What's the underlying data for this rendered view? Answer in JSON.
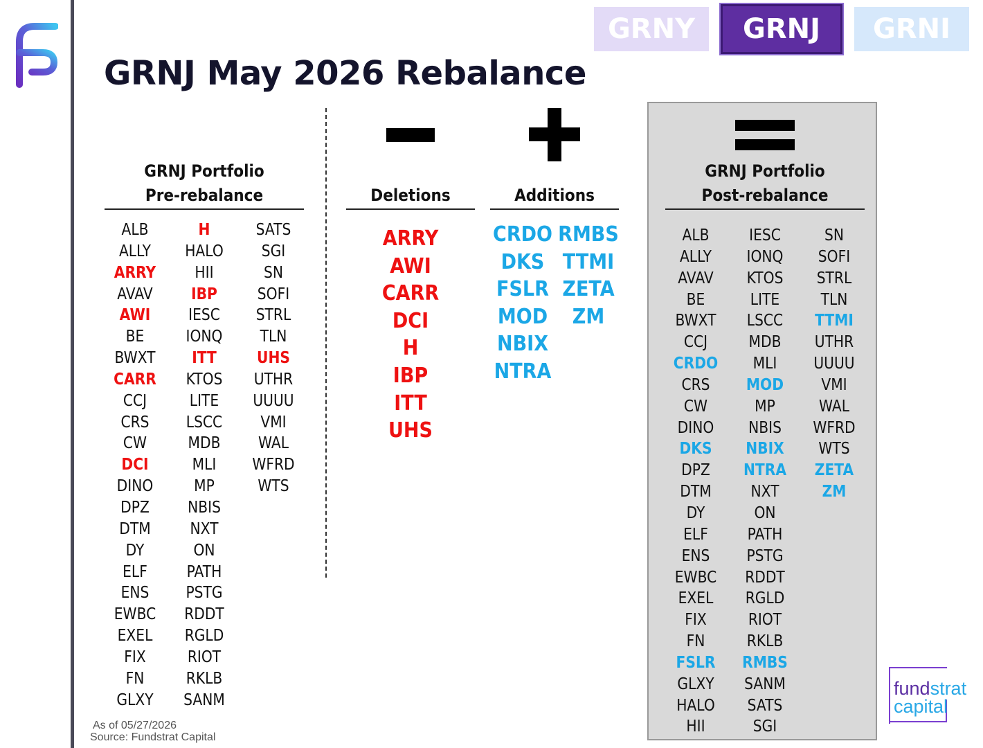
{
  "tabs": [
    {
      "label": "GRNY",
      "color": "#e3dbf7",
      "active": false
    },
    {
      "label": "GRNJ",
      "color": "#5e2ea1",
      "active": true
    },
    {
      "label": "GRNI",
      "color": "#d6e8fb",
      "active": false
    }
  ],
  "title": "GRNJ May 2026 Rebalance",
  "pre": {
    "heading_line1": "GRNJ Portfolio",
    "heading_line2": "Pre-rebalance",
    "col1": [
      "ALB",
      "ALLY",
      "ARRY",
      "AVAV",
      "AWI",
      "BE",
      "BWXT",
      "CARR",
      "CCJ",
      "CRS",
      "CW",
      "DCI",
      "DINO",
      "DPZ",
      "DTM",
      "DY",
      "ELF",
      "ENS",
      "EWBC",
      "EXEL",
      "FIX",
      "FN",
      "GLXY"
    ],
    "col2": [
      "H",
      "HALO",
      "HII",
      "IBP",
      "IESC",
      "IONQ",
      "ITT",
      "KTOS",
      "LITE",
      "LSCC",
      "MDB",
      "MLI",
      "MP",
      "NBIS",
      "NXT",
      "ON",
      "PATH",
      "PSTG",
      "RDDT",
      "RGLD",
      "RIOT",
      "RKLB",
      "SANM"
    ],
    "col3": [
      "SATS",
      "SGI",
      "SN",
      "SOFI",
      "STRL",
      "TLN",
      "UHS",
      "UTHR",
      "UUUU",
      "VMI",
      "WAL",
      "WFRD",
      "WTS"
    ]
  },
  "deletions": {
    "heading": "Deletions",
    "symbol": "minus-icon",
    "tickers": [
      "ARRY",
      "AWI",
      "CARR",
      "DCI",
      "H",
      "IBP",
      "ITT",
      "UHS"
    ],
    "color": "#ee1111"
  },
  "additions": {
    "heading": "Additions",
    "symbol": "plus-icon",
    "col1": [
      "CRDO",
      "DKS",
      "FSLR",
      "MOD",
      "NBIX",
      "NTRA"
    ],
    "col2": [
      "RMBS",
      "TTMI",
      "ZETA",
      "ZM"
    ],
    "color": "#1ba7e6"
  },
  "post": {
    "heading_line1": "GRNJ Portfolio",
    "heading_line2": "Post-rebalance",
    "symbol": "equals-icon",
    "col1": [
      "ALB",
      "ALLY",
      "AVAV",
      "BE",
      "BWXT",
      "CCJ",
      "CRDO",
      "CRS",
      "CW",
      "DINO",
      "DKS",
      "DPZ",
      "DTM",
      "DY",
      "ELF",
      "ENS",
      "EWBC",
      "EXEL",
      "FIX",
      "FN",
      "FSLR",
      "GLXY",
      "HALO",
      "HII"
    ],
    "col2": [
      "IESC",
      "IONQ",
      "KTOS",
      "LITE",
      "LSCC",
      "MDB",
      "MLI",
      "MOD",
      "MP",
      "NBIS",
      "NBIX",
      "NTRA",
      "NXT",
      "ON",
      "PATH",
      "PSTG",
      "RDDT",
      "RGLD",
      "RIOT",
      "RKLB",
      "RMBS",
      "SANM",
      "SATS",
      "SGI"
    ],
    "col3": [
      "SN",
      "SOFI",
      "STRL",
      "TLN",
      "TTMI",
      "UTHR",
      "UUUU",
      "VMI",
      "WAL",
      "WFRD",
      "WTS",
      "ZETA",
      "ZM"
    ]
  },
  "footnote": {
    "as_of": "As of 05/27/2026",
    "source": "Source: Fundstrat Capital"
  },
  "brand": {
    "logo_icon": "fundstrat-f-logo-icon",
    "word1a": "fund",
    "word1b": "strat",
    "word2": "capital"
  }
}
